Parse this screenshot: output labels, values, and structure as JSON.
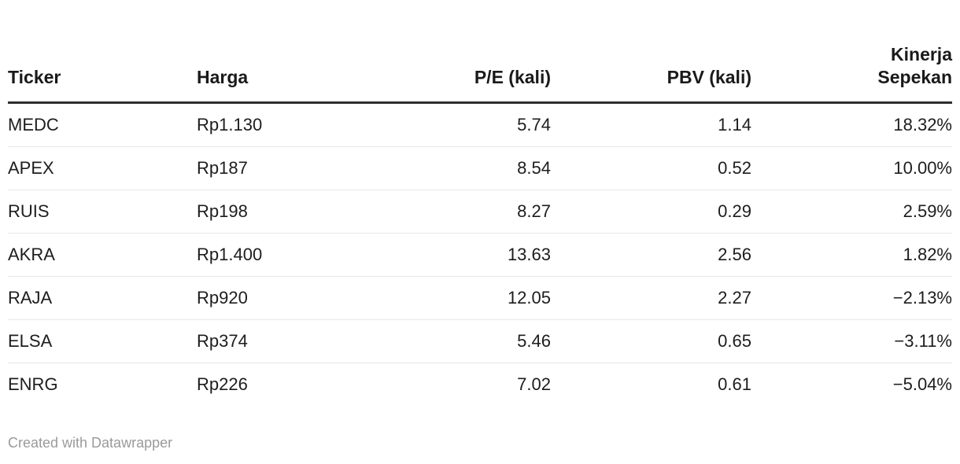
{
  "chart_data": {
    "type": "table",
    "columns": [
      {
        "label": "Ticker",
        "align": "left"
      },
      {
        "label": "Harga",
        "align": "left"
      },
      {
        "label": "P/E (kali)",
        "align": "right"
      },
      {
        "label": "PBV (kali)",
        "align": "right"
      },
      {
        "label": "Kinerja\nSepekan",
        "align": "right"
      }
    ],
    "rows": [
      {
        "cells": [
          "MEDC",
          "Rp1.130",
          "5.74",
          "1.14",
          "18.32%"
        ]
      },
      {
        "cells": [
          "APEX",
          "Rp187",
          "8.54",
          "0.52",
          "10.00%"
        ]
      },
      {
        "cells": [
          "RUIS",
          "Rp198",
          "8.27",
          "0.29",
          "2.59%"
        ]
      },
      {
        "cells": [
          "AKRA",
          "Rp1.400",
          "13.63",
          "2.56",
          "1.82%"
        ]
      },
      {
        "cells": [
          "RAJA",
          "Rp920",
          "12.05",
          "2.27",
          "−2.13%"
        ]
      },
      {
        "cells": [
          "ELSA",
          "Rp374",
          "5.46",
          "0.65",
          "−3.11%"
        ]
      },
      {
        "cells": [
          "ENRG",
          "Rp226",
          "7.02",
          "0.61",
          "−5.04%"
        ]
      }
    ]
  },
  "footer": {
    "credit": "Created with Datawrapper"
  },
  "colors": {
    "background": "#ffffff",
    "header_text": "#1a1a1a",
    "body_text": "#1d1d1d",
    "header_rule": "#2e2e2e",
    "row_divider": "#e7e7e7",
    "footer_text": "#9a9a9a"
  }
}
